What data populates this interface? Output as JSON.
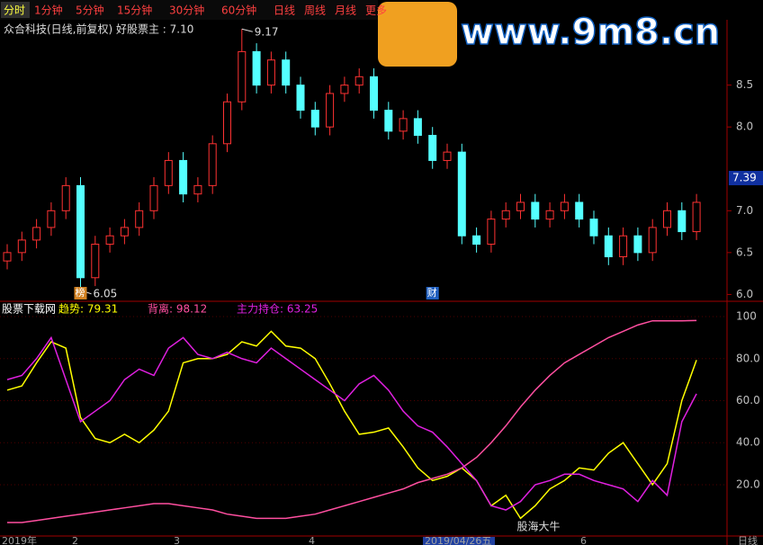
{
  "toolbar": [
    "分时",
    "1分钟",
    "5分钟",
    "15分钟",
    "30分钟",
    "60分钟",
    "日线",
    "周线",
    "月线",
    "更多"
  ],
  "watermark": "www.9m8.cn",
  "chart_data": [
    {
      "type": "candlestick",
      "title": "众合科技(日线,前复权) 好股票主 : 7.10",
      "open": [
        6.4,
        6.5,
        6.65,
        6.8,
        7.0,
        7.3,
        6.2,
        6.6,
        6.7,
        6.8,
        7.0,
        7.3,
        7.6,
        7.2,
        7.3,
        7.8,
        8.3,
        8.9,
        8.5,
        8.8,
        8.5,
        8.2,
        8.0,
        8.4,
        8.5,
        8.6,
        8.2,
        7.95,
        8.1,
        7.9,
        7.6,
        7.7,
        6.7,
        6.6,
        6.9,
        7.0,
        7.1,
        6.9,
        7.0,
        7.1,
        6.9,
        6.7,
        6.45,
        6.7,
        6.5,
        6.8,
        7.0,
        6.75
      ],
      "high": [
        6.6,
        6.75,
        6.9,
        7.1,
        7.4,
        7.4,
        6.7,
        6.8,
        6.9,
        7.1,
        7.4,
        7.7,
        7.7,
        7.4,
        7.9,
        8.4,
        9.17,
        9.0,
        8.9,
        8.9,
        8.6,
        8.3,
        8.5,
        8.6,
        8.7,
        8.7,
        8.3,
        8.2,
        8.2,
        8.0,
        7.8,
        7.8,
        6.8,
        7.0,
        7.1,
        7.2,
        7.2,
        7.1,
        7.2,
        7.2,
        7.0,
        6.8,
        6.8,
        6.8,
        6.9,
        7.1,
        7.1,
        7.2
      ],
      "low": [
        6.3,
        6.4,
        6.55,
        6.7,
        6.9,
        6.05,
        6.1,
        6.5,
        6.6,
        6.7,
        6.9,
        7.2,
        7.1,
        7.1,
        7.2,
        7.7,
        8.2,
        8.4,
        8.4,
        8.4,
        8.1,
        7.9,
        7.9,
        8.3,
        8.4,
        8.1,
        7.85,
        7.85,
        7.8,
        7.5,
        7.5,
        6.6,
        6.5,
        6.5,
        6.8,
        6.9,
        6.8,
        6.8,
        6.9,
        6.8,
        6.6,
        6.35,
        6.35,
        6.4,
        6.4,
        6.7,
        6.65,
        6.65
      ],
      "close": [
        6.5,
        6.65,
        6.8,
        7.0,
        7.3,
        6.2,
        6.6,
        6.7,
        6.8,
        7.0,
        7.3,
        7.6,
        7.2,
        7.3,
        7.8,
        8.3,
        8.9,
        8.5,
        8.8,
        8.5,
        8.2,
        8.0,
        8.4,
        8.5,
        8.6,
        8.2,
        7.95,
        8.1,
        7.9,
        7.6,
        7.7,
        6.7,
        6.6,
        6.9,
        7.0,
        7.1,
        6.9,
        7.0,
        7.1,
        6.9,
        6.7,
        6.45,
        6.7,
        6.5,
        6.8,
        7.0,
        6.75,
        7.1
      ],
      "up_color": "#ff3232",
      "down_color": "#54ffff",
      "ylim": [
        5.94,
        9.28
      ],
      "yticks": [
        {
          "value": 6,
          "label": "6.0"
        },
        6.5,
        {
          "value": 7,
          "label": "7.0"
        },
        {
          "value": 8,
          "label": "8.0"
        },
        8.5
      ],
      "cursor_price": 7.39,
      "annotations": [
        "9.17",
        "6.05"
      ],
      "markers": [
        "榜",
        "财"
      ]
    },
    {
      "type": "line",
      "header": [
        "股票下载网",
        "趋势: 79.31",
        "背离: 98.12",
        "主力持仓: 63.25"
      ],
      "series": [
        {
          "name": "趋势",
          "color": "#ffff00",
          "values": [
            65,
            67,
            78,
            88,
            85,
            52,
            42,
            40,
            44,
            40,
            46,
            55,
            78,
            80,
            80,
            82,
            88,
            86,
            93,
            86,
            85,
            80,
            68,
            55,
            44,
            45,
            47,
            38,
            28,
            22,
            24,
            28,
            22,
            10,
            15,
            4,
            10,
            18,
            22,
            28,
            27,
            35,
            40,
            30,
            20,
            30,
            60,
            79.31
          ]
        },
        {
          "name": "背离",
          "color": "#ff4fa0",
          "values": [
            2,
            2,
            3,
            4,
            5,
            6,
            7,
            8,
            9,
            10,
            11,
            11,
            10,
            9,
            8,
            6,
            5,
            4,
            4,
            4,
            5,
            6,
            8,
            10,
            12,
            14,
            16,
            18,
            21,
            23,
            25,
            28,
            33,
            40,
            48,
            57,
            65,
            72,
            78,
            82,
            86,
            90,
            93,
            96,
            98,
            98,
            98,
            98.12
          ]
        },
        {
          "name": "主力持仓",
          "color": "#e020e0",
          "values": [
            70,
            72,
            80,
            90,
            70,
            50,
            55,
            60,
            70,
            75,
            72,
            85,
            90,
            82,
            80,
            83,
            80,
            78,
            85,
            80,
            75,
            70,
            65,
            60,
            68,
            72,
            65,
            55,
            48,
            45,
            38,
            30,
            22,
            10,
            8,
            12,
            20,
            22,
            25,
            25,
            22,
            20,
            18,
            12,
            22,
            15,
            50,
            63.25
          ]
        }
      ],
      "ylim": [
        -4.4,
        106
      ],
      "yticks": [
        {
          "value": 20,
          "label": "20.0"
        },
        {
          "value": 40,
          "label": "40.0"
        },
        {
          "value": 60,
          "label": "60.0"
        },
        {
          "value": 80,
          "label": "80.0"
        },
        100
      ],
      "annotations": [
        "股海大牛"
      ],
      "x_labels": [
        "2019年",
        "2",
        "3",
        "4",
        "2019/04/26五",
        "6",
        "日线"
      ]
    }
  ]
}
